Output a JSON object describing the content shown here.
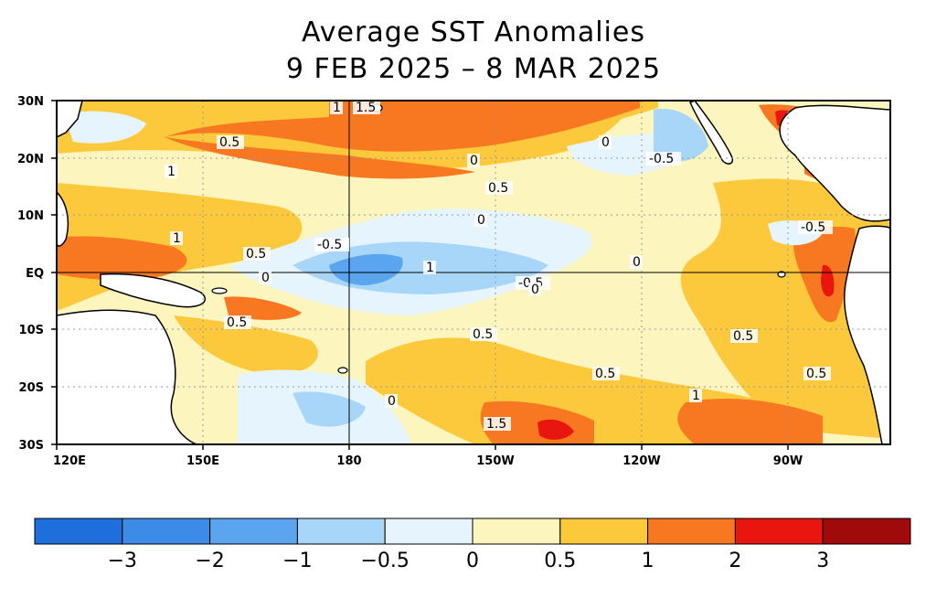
{
  "title": "Average SST Anomalies",
  "subtitle": "9 FEB 2025 – 8 MAR 2025",
  "lat_ticks": [
    "30N",
    "20N",
    "10N",
    "EQ",
    "10S",
    "20S",
    "30S"
  ],
  "lon_ticks": [
    "120E",
    "150E",
    "180",
    "150W",
    "120W",
    "90W"
  ],
  "contour_labels": [
    "1",
    "1.5",
    "0.5",
    "1",
    "1",
    "0",
    "-0.5",
    "0.5",
    "0",
    "0.5",
    "-0.5",
    "0",
    "1",
    "0",
    "-0.5",
    "0",
    "-0.5",
    "0.5",
    "0.5",
    "0.5",
    "0.5",
    "0",
    "1.5",
    "1",
    "0.5",
    "0"
  ],
  "colorbar": {
    "labels": [
      "-3",
      "-2",
      "-1",
      "-0.5",
      "0",
      "0.5",
      "1",
      "2",
      "3"
    ],
    "colors": [
      "#1e6fdc",
      "#3c8ce6",
      "#5aa5ee",
      "#a8d6f8",
      "#e6f5fd",
      "#fdf5be",
      "#fcc93c",
      "#f77820",
      "#e8160e",
      "#a00a0a"
    ]
  },
  "map_colors": {
    "ocean_base": "#fdf5be",
    "anom_0_05": "#fdf5be",
    "anom_05_1": "#fcc93c",
    "anom_1_2": "#f77820",
    "anom_2_3": "#e8160e",
    "anom_m05_0": "#e6f5fd",
    "anom_m1_m05": "#a8d6f8",
    "anom_m2_m1": "#5aa5ee",
    "land": "#ffffff"
  }
}
